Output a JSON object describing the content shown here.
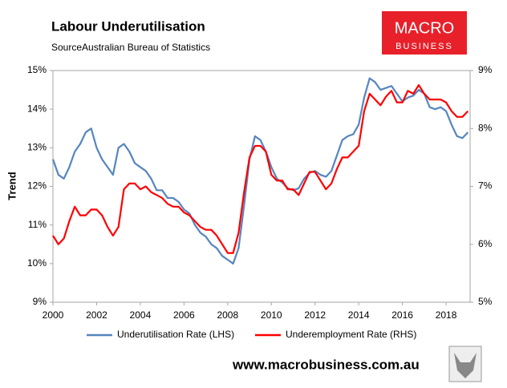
{
  "chart_data": {
    "type": "line",
    "title": "Labour Underutilisation",
    "subtitle": "SourceAustralian Bureau of Statistics",
    "ylabel": "Trend",
    "x": [
      2000,
      2000.25,
      2000.5,
      2000.75,
      2001,
      2001.25,
      2001.5,
      2001.75,
      2002,
      2002.25,
      2002.5,
      2002.75,
      2003,
      2003.25,
      2003.5,
      2003.75,
      2004,
      2004.25,
      2004.5,
      2004.75,
      2005,
      2005.25,
      2005.5,
      2005.75,
      2006,
      2006.25,
      2006.5,
      2006.75,
      2007,
      2007.25,
      2007.5,
      2007.75,
      2008,
      2008.25,
      2008.5,
      2008.75,
      2009,
      2009.25,
      2009.5,
      2009.75,
      2010,
      2010.25,
      2010.5,
      2010.75,
      2011,
      2011.25,
      2011.5,
      2011.75,
      2012,
      2012.25,
      2012.5,
      2012.75,
      2013,
      2013.25,
      2013.5,
      2013.75,
      2014,
      2014.25,
      2014.5,
      2014.75,
      2015,
      2015.25,
      2015.5,
      2015.75,
      2016,
      2016.25,
      2016.5,
      2016.75,
      2017,
      2017.25,
      2017.5,
      2017.75,
      2018,
      2018.25,
      2018.5,
      2018.75,
      2019
    ],
    "series": [
      {
        "name": "Underutilisation Rate (LHS)",
        "color": "#5585bf",
        "axis": "y",
        "values": [
          12.7,
          12.3,
          12.2,
          12.5,
          12.9,
          13.1,
          13.4,
          13.5,
          13.0,
          12.7,
          12.5,
          12.3,
          13.0,
          13.1,
          12.9,
          12.6,
          12.5,
          12.4,
          12.2,
          11.9,
          11.9,
          11.7,
          11.7,
          11.6,
          11.4,
          11.3,
          11.0,
          10.8,
          10.7,
          10.5,
          10.4,
          10.2,
          10.1,
          10.0,
          10.4,
          11.5,
          12.7,
          13.3,
          13.2,
          12.9,
          12.5,
          12.2,
          12.1,
          11.95,
          11.9,
          11.95,
          12.2,
          12.35,
          12.4,
          12.3,
          12.25,
          12.4,
          12.8,
          13.2,
          13.3,
          13.35,
          13.6,
          14.3,
          14.8,
          14.7,
          14.5,
          14.55,
          14.6,
          14.4,
          14.2,
          14.3,
          14.35,
          14.5,
          14.4,
          14.05,
          14.0,
          14.05,
          13.95,
          13.6,
          13.3,
          13.25,
          13.4
        ]
      },
      {
        "name": "Underemployment Rate (RHS)",
        "color": "#ff0000",
        "axis": "y2",
        "values": [
          6.15,
          6.0,
          6.1,
          6.4,
          6.65,
          6.5,
          6.5,
          6.6,
          6.6,
          6.5,
          6.3,
          6.15,
          6.3,
          6.95,
          7.05,
          7.05,
          6.95,
          7.0,
          6.9,
          6.85,
          6.8,
          6.7,
          6.65,
          6.65,
          6.55,
          6.5,
          6.4,
          6.3,
          6.25,
          6.25,
          6.15,
          6.0,
          5.85,
          5.85,
          6.2,
          6.9,
          7.5,
          7.7,
          7.7,
          7.6,
          7.2,
          7.1,
          7.1,
          6.95,
          6.95,
          6.85,
          7.05,
          7.25,
          7.25,
          7.1,
          6.95,
          7.05,
          7.3,
          7.5,
          7.5,
          7.6,
          7.7,
          8.3,
          8.6,
          8.5,
          8.4,
          8.55,
          8.65,
          8.45,
          8.45,
          8.65,
          8.6,
          8.75,
          8.6,
          8.5,
          8.5,
          8.5,
          8.45,
          8.3,
          8.2,
          8.2,
          8.3
        ]
      }
    ],
    "xlim": [
      2000,
      2019.1
    ],
    "xticks": [
      2000,
      2002,
      2004,
      2006,
      2008,
      2010,
      2012,
      2014,
      2016,
      2018
    ],
    "ylim": [
      9,
      15
    ],
    "yticks": [
      {
        "value": 9,
        "label": "9%"
      },
      {
        "value": 10,
        "label": "10%"
      },
      {
        "value": 11,
        "label": "11%"
      },
      {
        "value": 12,
        "label": "12%"
      },
      {
        "value": 13,
        "label": "13%"
      },
      {
        "value": 14,
        "label": "14%"
      },
      {
        "value": 15,
        "label": "15%"
      }
    ],
    "y2lim": [
      5,
      9
    ],
    "y2ticks": [
      {
        "value": 5,
        "label": "5%"
      },
      {
        "value": 6,
        "label": "6%"
      },
      {
        "value": 7,
        "label": "7%"
      },
      {
        "value": 8,
        "label": "8%"
      },
      {
        "value": 9,
        "label": "9%"
      }
    ],
    "legend": "bottom"
  },
  "logo": {
    "line1": "MACRO",
    "line2": "BUSINESS"
  },
  "footer": "www.macrobusiness.com.au"
}
